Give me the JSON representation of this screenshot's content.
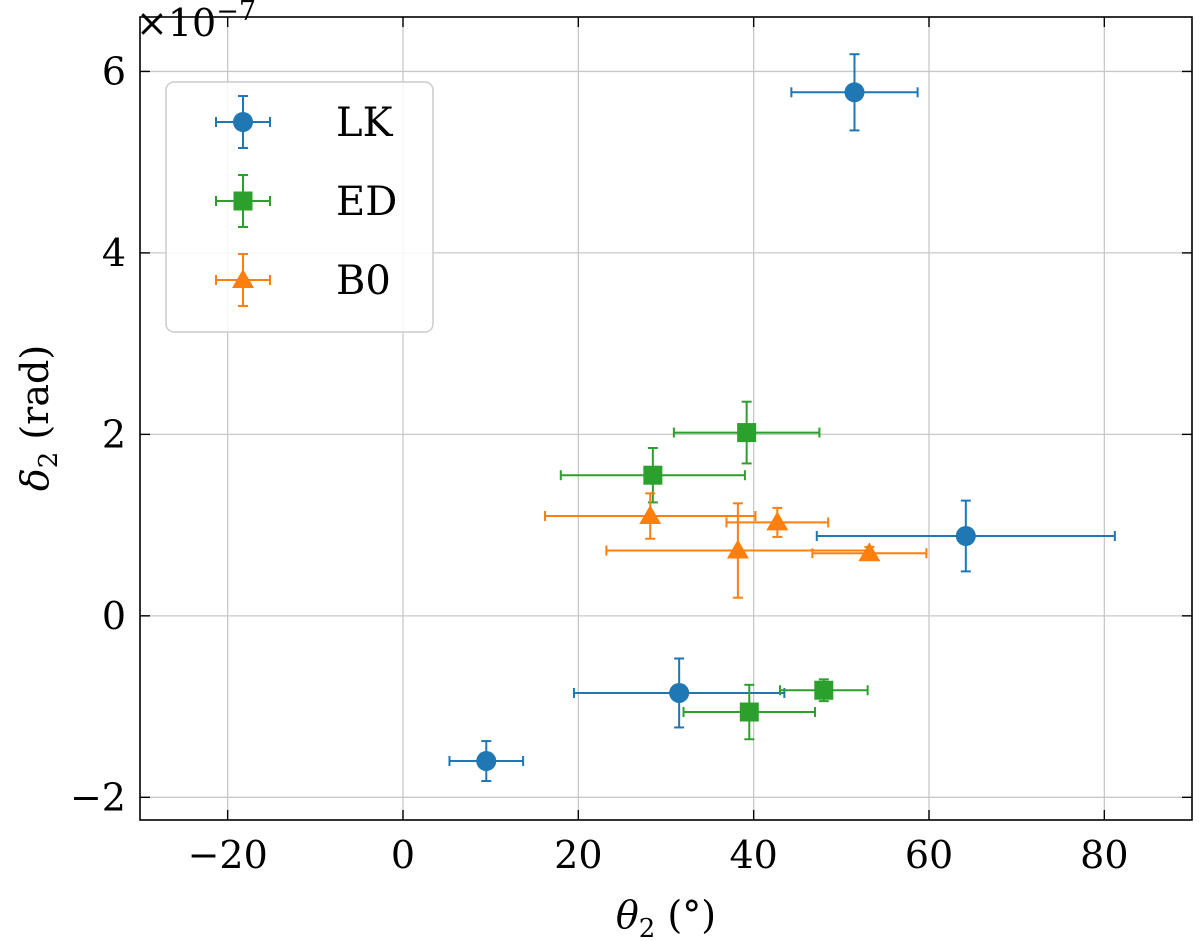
{
  "chart_data": {
    "type": "scatter",
    "title": "",
    "xlabel_symbol": "θ",
    "xlabel_sub": "2",
    "xlabel_unit": " (°)",
    "ylabel_symbol": "δ",
    "ylabel_sub": "2",
    "ylabel_unit": " (rad)",
    "y_exponent": "×10",
    "y_exponent_power": "−7",
    "xlim": [
      -30,
      90
    ],
    "ylim": [
      -2.25,
      6.6
    ],
    "xticks": [
      -20,
      0,
      20,
      40,
      60,
      80
    ],
    "xtick_labels": [
      "−20",
      "0",
      "20",
      "40",
      "60",
      "80"
    ],
    "yticks": [
      -2,
      0,
      2,
      4,
      6
    ],
    "ytick_labels": [
      "−2",
      "0",
      "2",
      "4",
      "6"
    ],
    "grid": true,
    "legend_position": "top-left",
    "series": [
      {
        "name": "LK",
        "marker": "circle",
        "color": "#1f77b4",
        "points": [
          {
            "x": 51.5,
            "y": 5.77,
            "xerr": 7.2,
            "yerr": 0.42
          },
          {
            "x": 64.2,
            "y": 0.88,
            "xerr": 17.0,
            "yerr": 0.39
          },
          {
            "x": 31.5,
            "y": -0.85,
            "xerr": 12.0,
            "yerr": 0.38
          },
          {
            "x": 9.5,
            "y": -1.6,
            "xerr": 4.2,
            "yerr": 0.22
          }
        ]
      },
      {
        "name": "ED",
        "marker": "square",
        "color": "#2ca02c",
        "points": [
          {
            "x": 39.2,
            "y": 2.02,
            "xerr": 8.3,
            "yerr": 0.34
          },
          {
            "x": 28.5,
            "y": 1.55,
            "xerr": 10.5,
            "yerr": 0.3
          },
          {
            "x": 48.0,
            "y": -0.82,
            "xerr": 5.0,
            "yerr": 0.12
          },
          {
            "x": 39.5,
            "y": -1.06,
            "xerr": 7.5,
            "yerr": 0.3
          }
        ]
      },
      {
        "name": "B0",
        "marker": "triangle",
        "color": "#ff7f0e",
        "points": [
          {
            "x": 28.2,
            "y": 1.1,
            "xerr": 12.0,
            "yerr": 0.25
          },
          {
            "x": 42.7,
            "y": 1.03,
            "xerr": 5.8,
            "yerr": 0.16
          },
          {
            "x": 38.2,
            "y": 0.72,
            "xerr": 15.0,
            "yerr": 0.52
          },
          {
            "x": 53.2,
            "y": 0.69,
            "xerr": 6.5,
            "yerr": 0.07
          }
        ]
      }
    ]
  }
}
